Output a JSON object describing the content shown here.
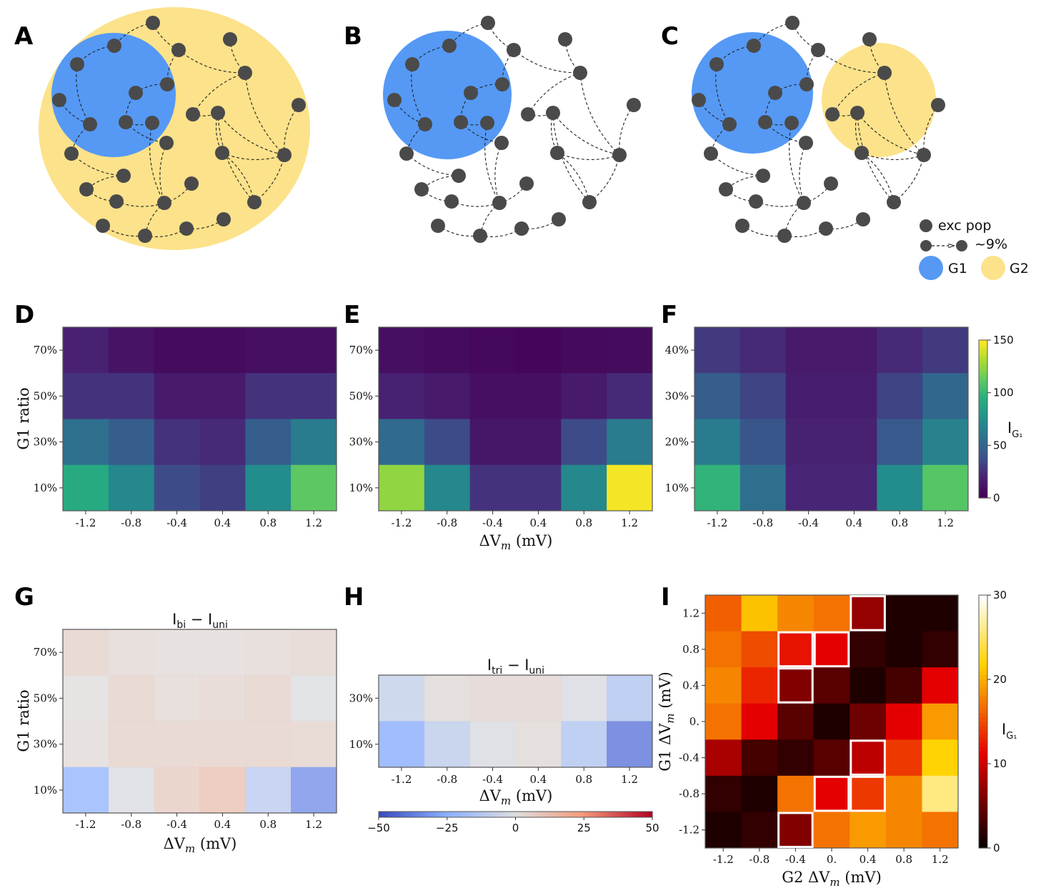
{
  "panel_labels": {
    "A": "A",
    "B": "B",
    "C": "C",
    "D": "D",
    "E": "E",
    "F": "F",
    "G": "G",
    "H": "H",
    "I": "I"
  },
  "legend": {
    "exc_pop": "exc pop",
    "connection": "~9%",
    "g1": "G1",
    "g2": "G2"
  },
  "colors": {
    "g1": "#5599f5",
    "g2": "#fce28a",
    "neuron": "#4a4a4a"
  },
  "chart_data": [
    {
      "panel": "D",
      "type": "heatmap",
      "colormap": "viridis",
      "xlabel": "",
      "ylabel": "G1 ratio",
      "x": [
        "-1.2",
        "-0.8",
        "-0.4",
        "0.4",
        "0.8",
        "1.2"
      ],
      "y": [
        "70%",
        "50%",
        "30%",
        "10%"
      ],
      "values": [
        [
          18,
          10,
          6,
          6,
          8,
          8
        ],
        [
          25,
          25,
          14,
          14,
          25,
          25
        ],
        [
          55,
          45,
          25,
          22,
          45,
          62
        ],
        [
          92,
          70,
          35,
          30,
          72,
          112
        ]
      ],
      "vmin": 0,
      "vmax": 150
    },
    {
      "panel": "E",
      "type": "heatmap",
      "colormap": "viridis",
      "xlabel": "ΔV_m (mV)",
      "ylabel": "",
      "x": [
        "-1.2",
        "-0.8",
        "-0.4",
        "0.4",
        "0.8",
        "1.2"
      ],
      "y": [
        "70%",
        "50%",
        "30%",
        "10%"
      ],
      "values": [
        [
          8,
          6,
          4,
          3,
          5,
          6
        ],
        [
          18,
          14,
          8,
          8,
          14,
          22
        ],
        [
          52,
          35,
          12,
          12,
          35,
          62
        ],
        [
          125,
          70,
          25,
          25,
          70,
          148
        ]
      ],
      "vmin": 0,
      "vmax": 150
    },
    {
      "panel": "F",
      "type": "heatmap",
      "colormap": "viridis",
      "xlabel": "",
      "ylabel": "",
      "x": [
        "-1.2",
        "-0.8",
        "-0.4",
        "0.4",
        "0.8",
        "1.2"
      ],
      "y": [
        "40%",
        "30%",
        "20%",
        "10%"
      ],
      "values": [
        [
          28,
          22,
          14,
          14,
          22,
          28
        ],
        [
          45,
          32,
          16,
          16,
          32,
          50
        ],
        [
          62,
          40,
          18,
          18,
          42,
          66
        ],
        [
          98,
          55,
          20,
          20,
          72,
          110
        ]
      ],
      "vmin": 0,
      "vmax": 150
    },
    {
      "panel": "G",
      "type": "heatmap",
      "colormap": "coolwarm",
      "title": "I_bi − I_uni",
      "xlabel": "ΔV_m (mV)",
      "ylabel": "G1 ratio",
      "x": [
        "-1.2",
        "-0.8",
        "-0.4",
        "0.4",
        "0.8",
        "1.2"
      ],
      "y": [
        "70%",
        "50%",
        "30%",
        "10%"
      ],
      "values": [
        [
          6,
          3,
          2,
          2,
          3,
          4
        ],
        [
          1,
          6,
          3,
          4,
          6,
          -1
        ],
        [
          2,
          6,
          6,
          6,
          6,
          5
        ],
        [
          -25,
          -2,
          8,
          12,
          -12,
          -35
        ]
      ],
      "vmin": -50,
      "vmax": 50
    },
    {
      "panel": "H",
      "type": "heatmap",
      "colormap": "coolwarm",
      "title": "I_tri − I_uni",
      "xlabel": "ΔV_m (mV)",
      "ylabel": "",
      "x": [
        "-1.2",
        "-0.8",
        "-0.4",
        "0.4",
        "0.8",
        "1.2"
      ],
      "y": [
        "30%",
        "10%"
      ],
      "values": [
        [
          -8,
          2,
          3,
          3,
          -2,
          -14
        ],
        [
          -26,
          -10,
          -2,
          2,
          -14,
          -40
        ]
      ],
      "vmin": -50,
      "vmax": 50,
      "colorbar_ticks": [
        "−50",
        "−25",
        "0",
        "25",
        "50"
      ]
    },
    {
      "panel": "I",
      "type": "heatmap",
      "colormap": "hot",
      "xlabel": "G2 ΔV_m (mV)",
      "ylabel": "G1 ΔV_m (mV)",
      "x": [
        "-1.2",
        "-0.8",
        "-0.4",
        "0.",
        "0.4",
        "0.8",
        "1.2"
      ],
      "y": [
        "1.2",
        "0.8",
        "0.4",
        "0.",
        "-0.4",
        "-0.8",
        "-1.2"
      ],
      "values": [
        [
          16,
          21,
          18,
          17,
          7,
          1,
          1
        ],
        [
          17,
          15,
          12,
          11,
          2,
          1,
          2
        ],
        [
          18,
          13,
          6,
          4,
          1,
          3,
          11
        ],
        [
          17,
          11,
          4,
          1,
          5,
          11,
          19
        ],
        [
          8,
          3,
          2,
          4,
          9,
          14,
          22
        ],
        [
          2,
          1,
          17,
          11,
          14,
          18,
          26
        ],
        [
          1,
          2,
          6,
          17,
          19,
          18,
          17
        ]
      ],
      "vmin": 0,
      "vmax": 30,
      "highlighted_cells": [
        [
          0,
          4
        ],
        [
          1,
          2
        ],
        [
          1,
          3
        ],
        [
          2,
          2
        ],
        [
          4,
          4
        ],
        [
          5,
          3
        ],
        [
          5,
          4
        ],
        [
          6,
          2
        ]
      ]
    }
  ],
  "colorbars": {
    "viridis": {
      "ticks": [
        "150",
        "100",
        "50",
        "0"
      ],
      "label": "I",
      "label_sub": "G₁"
    },
    "hot": {
      "ticks": [
        "30",
        "20",
        "10",
        "0"
      ],
      "label": "I",
      "label_sub": "G₁"
    }
  },
  "titles": {
    "g_main": "I",
    "g_sub1": "bi",
    "g_sub2": "uni",
    "h_main": "I",
    "h_sub1": "tri",
    "h_sub2": "uni"
  }
}
